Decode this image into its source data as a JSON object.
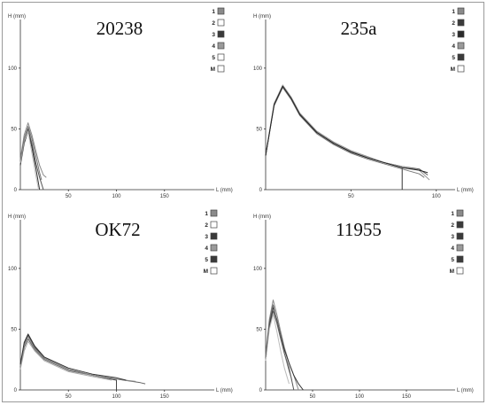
{
  "chart_data": [
    {
      "type": "line",
      "title": "20238",
      "xlabel": "L (mm)",
      "ylabel": "H (mm)",
      "xlim": [
        0,
        200
      ],
      "ylim": [
        0,
        140
      ],
      "xticks": [
        "50",
        "100",
        "150"
      ],
      "yticks": [
        "0",
        "50",
        "100"
      ],
      "legend": [
        "1",
        "2",
        "3",
        "4",
        "5",
        "M"
      ],
      "legend_colors": [
        "#8a8a8a",
        "#ffffff",
        "#3a3a3a",
        "#9a9a9a",
        "#ffffff",
        "#ffffff"
      ],
      "series": [
        {
          "color": "#555555",
          "x": [
            0,
            4,
            8,
            12,
            16,
            20,
            24
          ],
          "y": [
            22,
            40,
            50,
            38,
            22,
            10,
            0
          ]
        },
        {
          "color": "#888888",
          "x": [
            0,
            4,
            8,
            12,
            16,
            20,
            24,
            27
          ],
          "y": [
            25,
            45,
            55,
            45,
            32,
            20,
            12,
            10
          ]
        },
        {
          "color": "#333333",
          "x": [
            0,
            4,
            8,
            12,
            16,
            20
          ],
          "y": [
            20,
            38,
            48,
            35,
            18,
            0
          ]
        },
        {
          "color": "#bbbbbb",
          "x": [
            0,
            4,
            8,
            12,
            16,
            19
          ],
          "y": [
            22,
            40,
            48,
            30,
            12,
            0
          ]
        },
        {
          "color": "#777777",
          "x": [
            0,
            4,
            8,
            12,
            16,
            20,
            22
          ],
          "y": [
            24,
            42,
            52,
            42,
            28,
            14,
            8
          ]
        }
      ]
    },
    {
      "type": "line",
      "title": "235a",
      "xlabel": "L (mm)",
      "ylabel": "H (mm)",
      "xlim": [
        0,
        110
      ],
      "ylim": [
        0,
        140
      ],
      "xticks": [
        "50",
        "100"
      ],
      "yticks": [
        "0",
        "50",
        "100"
      ],
      "legend": [
        "1",
        "2",
        "3",
        "4",
        "5",
        "M"
      ],
      "legend_colors": [
        "#8a8a8a",
        "#3a3a3a",
        "#2a2a2a",
        "#9a9a9a",
        "#3a3a3a",
        "#ffffff"
      ],
      "series": [
        {
          "color": "#333333",
          "x": [
            0,
            5,
            10,
            15,
            20,
            30,
            40,
            50,
            60,
            70,
            80,
            80
          ],
          "y": [
            28,
            70,
            85,
            75,
            62,
            47,
            38,
            31,
            26,
            22,
            18,
            0
          ]
        },
        {
          "color": "#555555",
          "x": [
            0,
            5,
            10,
            15,
            20,
            30,
            40,
            50,
            60,
            70,
            80,
            90,
            95
          ],
          "y": [
            28,
            70,
            86,
            76,
            63,
            48,
            39,
            32,
            27,
            22,
            19,
            17,
            12
          ]
        },
        {
          "color": "#777777",
          "x": [
            0,
            5,
            10,
            15,
            20,
            30,
            40,
            50,
            60,
            70,
            80,
            90,
            93
          ],
          "y": [
            28,
            69,
            84,
            74,
            61,
            46,
            37,
            30,
            25,
            21,
            17,
            13,
            10
          ]
        },
        {
          "color": "#999999",
          "x": [
            0,
            5,
            10,
            15,
            20,
            30,
            40,
            50,
            60,
            70,
            80,
            90,
            96
          ],
          "y": [
            29,
            71,
            86,
            76,
            63,
            48,
            39,
            32,
            27,
            22,
            19,
            16,
            8
          ]
        },
        {
          "color": "#222222",
          "x": [
            0,
            5,
            10,
            15,
            20,
            30,
            40,
            50,
            60,
            70,
            80,
            90,
            95
          ],
          "y": [
            28,
            70,
            85,
            75,
            62,
            47,
            38,
            31,
            26,
            22,
            18,
            16,
            14
          ]
        }
      ]
    },
    {
      "type": "line",
      "title": "OK72",
      "xlabel": "L (mm)",
      "ylabel": "H (mm)",
      "xlim": [
        0,
        200
      ],
      "ylim": [
        0,
        140
      ],
      "xticks": [
        "50",
        "100",
        "150"
      ],
      "yticks": [
        "0",
        "50",
        "100"
      ],
      "legend": [
        "1",
        "2",
        "3",
        "4",
        "5",
        "M"
      ],
      "legend_colors": [
        "#8a8a8a",
        "#ffffff",
        "#3a3a3a",
        "#9a9a9a",
        "#3a3a3a",
        "#ffffff"
      ],
      "series": [
        {
          "color": "#444444",
          "x": [
            0,
            4,
            8,
            15,
            25,
            50,
            75,
            100,
            100
          ],
          "y": [
            20,
            38,
            45,
            35,
            26,
            17,
            12,
            8,
            0
          ]
        },
        {
          "color": "#666666",
          "x": [
            0,
            4,
            8,
            15,
            25,
            50,
            75,
            100,
            125,
            130
          ],
          "y": [
            18,
            35,
            42,
            33,
            25,
            16,
            12,
            9,
            6,
            5
          ]
        },
        {
          "color": "#888888",
          "x": [
            0,
            4,
            8,
            15,
            25,
            50,
            75,
            100,
            120
          ],
          "y": [
            20,
            37,
            44,
            34,
            26,
            17,
            12,
            9,
            7
          ]
        },
        {
          "color": "#aaaaaa",
          "x": [
            0,
            4,
            8,
            15,
            25,
            50,
            75,
            95
          ],
          "y": [
            17,
            32,
            40,
            32,
            24,
            15,
            11,
            8
          ]
        },
        {
          "color": "#333333",
          "x": [
            0,
            4,
            8,
            15,
            25,
            50,
            75,
            100,
            110
          ],
          "y": [
            21,
            39,
            46,
            36,
            27,
            18,
            13,
            10,
            8
          ]
        }
      ]
    },
    {
      "type": "line",
      "title": "11955",
      "xlabel": "L (mm)",
      "ylabel": "H (mm)",
      "xlim": [
        0,
        200
      ],
      "ylim": [
        0,
        140
      ],
      "xticks": [
        "50",
        "100",
        "150"
      ],
      "yticks": [
        "0",
        "50",
        "100"
      ],
      "legend": [
        "1",
        "2",
        "3",
        "4",
        "5",
        "M"
      ],
      "legend_colors": [
        "#8a8a8a",
        "#3a3a3a",
        "#3a3a3a",
        "#9a9a9a",
        "#3a3a3a",
        "#ffffff"
      ],
      "series": [
        {
          "color": "#555555",
          "x": [
            0,
            4,
            8,
            12,
            16,
            20,
            25,
            30
          ],
          "y": [
            25,
            52,
            65,
            55,
            42,
            30,
            18,
            0
          ]
        },
        {
          "color": "#888888",
          "x": [
            0,
            4,
            8,
            12,
            16,
            20,
            25,
            30,
            35
          ],
          "y": [
            28,
            58,
            74,
            62,
            48,
            35,
            22,
            12,
            0
          ]
        },
        {
          "color": "#333333",
          "x": [
            0,
            4,
            8,
            12,
            16,
            20,
            25,
            30,
            35,
            40
          ],
          "y": [
            26,
            54,
            68,
            58,
            45,
            33,
            22,
            12,
            5,
            0
          ]
        },
        {
          "color": "#bbbbbb",
          "x": [
            0,
            4,
            8,
            12,
            16,
            20,
            25
          ],
          "y": [
            24,
            50,
            62,
            48,
            32,
            18,
            5
          ]
        },
        {
          "color": "#666666",
          "x": [
            0,
            4,
            8,
            12,
            16,
            20,
            25,
            28
          ],
          "y": [
            27,
            56,
            70,
            57,
            44,
            30,
            16,
            8
          ]
        }
      ]
    }
  ]
}
